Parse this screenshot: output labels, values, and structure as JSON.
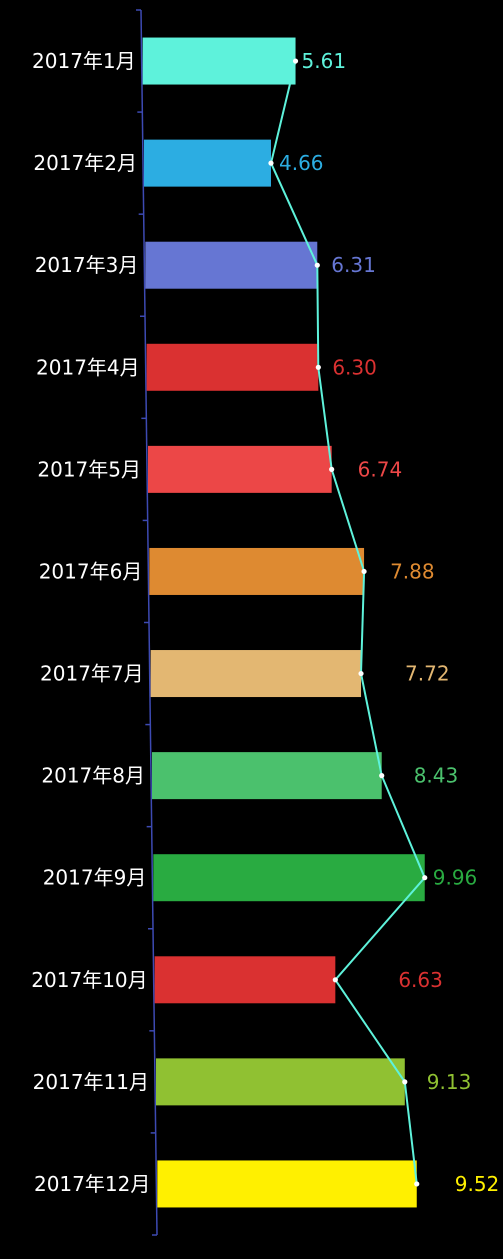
{
  "chart_data": {
    "type": "bar",
    "orientation": "horizontal",
    "categories": [
      "2017年1月",
      "2017年2月",
      "2017年3月",
      "2017年4月",
      "2017年5月",
      "2017年6月",
      "2017年7月",
      "2017年8月",
      "2017年9月",
      "2017年10月",
      "2017年11月",
      "2017年12月"
    ],
    "series": [
      {
        "type": "bar",
        "values": [
          5.61,
          4.66,
          6.31,
          6.3,
          6.74,
          7.88,
          7.72,
          8.43,
          9.96,
          6.63,
          9.13,
          9.52
        ]
      },
      {
        "type": "line",
        "values": [
          5.61,
          4.66,
          6.31,
          6.3,
          6.74,
          7.88,
          7.72,
          8.43,
          9.96,
          6.63,
          9.13,
          9.52
        ]
      }
    ],
    "value_labels": [
      "5.61",
      "4.66",
      "6.31",
      "6.30",
      "6.74",
      "7.88",
      "7.72",
      "8.43",
      "9.96",
      "6.63",
      "9.13",
      "9.52"
    ],
    "bar_colors": [
      "#5ef2db",
      "#2cade2",
      "#6676d3",
      "#da3131",
      "#ec4747",
      "#de8a31",
      "#e3b772",
      "#4bc16d",
      "#29ab41",
      "#da3131",
      "#90c132",
      "#fff000"
    ],
    "line_color": "#5ef2db",
    "axis_color": "#3d4ab3",
    "grid": false,
    "legend": "none",
    "title": "",
    "xlabel": "",
    "ylabel": ""
  }
}
